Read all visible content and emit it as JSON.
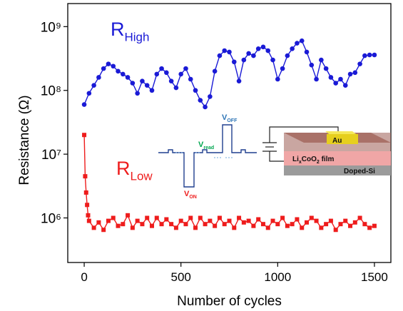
{
  "chart_data": {
    "type": "line",
    "x_label": "Number of cycles",
    "y_label": "Resistance (Ω)",
    "log_y": true,
    "xlim": [
      -85,
      1585
    ],
    "ylim": [
      200000,
      2300000000
    ],
    "xticks": [
      0,
      500,
      1000,
      1500
    ],
    "yticks": [
      {
        "value": 1000000,
        "label": "10⁶"
      },
      {
        "value": 10000000,
        "label": "10⁷"
      },
      {
        "value": 100000000,
        "label": "10⁸"
      },
      {
        "value": 1000000000,
        "label": "10⁹"
      }
    ],
    "annotations": [
      {
        "pieces": [
          "R",
          "High"
        ],
        "color": "#1a1ad6"
      },
      {
        "pieces": [
          "R",
          "Low"
        ],
        "color": "#ee1c1c"
      }
    ],
    "inset": {
      "pulse_labels": [
        {
          "pieces": [
            "V",
            "OFF"
          ],
          "color": "#2e75b6"
        },
        {
          "pieces": [
            "V",
            "read"
          ],
          "color": "#00a650"
        },
        {
          "pieces": [
            "V",
            "ON"
          ],
          "color": "#ee1c1c"
        }
      ],
      "layers": [
        {
          "pieces": [
            "Au"
          ]
        },
        {
          "pieces": [
            "Li",
            "x",
            "CoO",
            "2",
            " film"
          ]
        },
        {
          "pieces": [
            "Doped-Si"
          ]
        }
      ]
    },
    "series": [
      {
        "color": "#1a1ad6",
        "marker": "circle",
        "x": [
          0,
          25,
          50,
          75,
          100,
          125,
          150,
          175,
          200,
          225,
          250,
          275,
          300,
          325,
          350,
          375,
          400,
          425,
          450,
          475,
          500,
          525,
          550,
          575,
          600,
          625,
          650,
          675,
          700,
          725,
          750,
          775,
          800,
          825,
          850,
          875,
          900,
          925,
          950,
          975,
          1000,
          1025,
          1050,
          1075,
          1100,
          1125,
          1150,
          1175,
          1200,
          1225,
          1250,
          1275,
          1300,
          1325,
          1350,
          1375,
          1400,
          1425,
          1450,
          1475,
          1500
        ],
        "values": [
          60000000,
          90000000,
          120000000,
          160000000,
          220000000,
          260000000,
          240000000,
          200000000,
          180000000,
          160000000,
          130000000,
          90000000,
          140000000,
          120000000,
          100000000,
          180000000,
          220000000,
          190000000,
          140000000,
          110000000,
          180000000,
          220000000,
          150000000,
          100000000,
          70000000,
          55000000,
          80000000,
          200000000,
          350000000,
          420000000,
          400000000,
          280000000,
          140000000,
          300000000,
          380000000,
          350000000,
          450000000,
          480000000,
          420000000,
          300000000,
          150000000,
          220000000,
          350000000,
          450000000,
          550000000,
          600000000,
          400000000,
          250000000,
          150000000,
          300000000,
          220000000,
          160000000,
          130000000,
          150000000,
          120000000,
          180000000,
          190000000,
          260000000,
          350000000,
          360000000,
          360000000
        ]
      },
      {
        "color": "#ee1c1c",
        "marker": "square",
        "x": [
          0,
          5,
          10,
          15,
          20,
          25,
          50,
          75,
          100,
          125,
          150,
          175,
          200,
          225,
          250,
          275,
          300,
          325,
          350,
          375,
          400,
          425,
          450,
          475,
          500,
          525,
          550,
          575,
          600,
          625,
          650,
          675,
          700,
          725,
          750,
          775,
          800,
          825,
          850,
          875,
          900,
          925,
          950,
          975,
          1000,
          1025,
          1050,
          1075,
          1100,
          1125,
          1150,
          1175,
          1200,
          1225,
          1250,
          1275,
          1300,
          1325,
          1350,
          1375,
          1400,
          1425,
          1450,
          1475,
          1500
        ],
        "values": [
          20000000,
          4500000,
          2500000,
          1600000,
          1100000,
          900000,
          700000,
          850000,
          650000,
          900000,
          1000000,
          750000,
          800000,
          1100000,
          700000,
          900000,
          800000,
          1000000,
          750000,
          1000000,
          800000,
          950000,
          800000,
          700000,
          900000,
          800000,
          1000000,
          700000,
          1000000,
          800000,
          900000,
          750000,
          1000000,
          800000,
          900000,
          700000,
          1000000,
          850000,
          900000,
          750000,
          950000,
          800000,
          700000,
          900000,
          800000,
          1000000,
          750000,
          800000,
          950000,
          700000,
          850000,
          1000000,
          900000,
          700000,
          800000,
          900000,
          650000,
          800000,
          900000,
          750000,
          850000,
          1000000,
          800000,
          700000,
          750000
        ]
      }
    ]
  }
}
